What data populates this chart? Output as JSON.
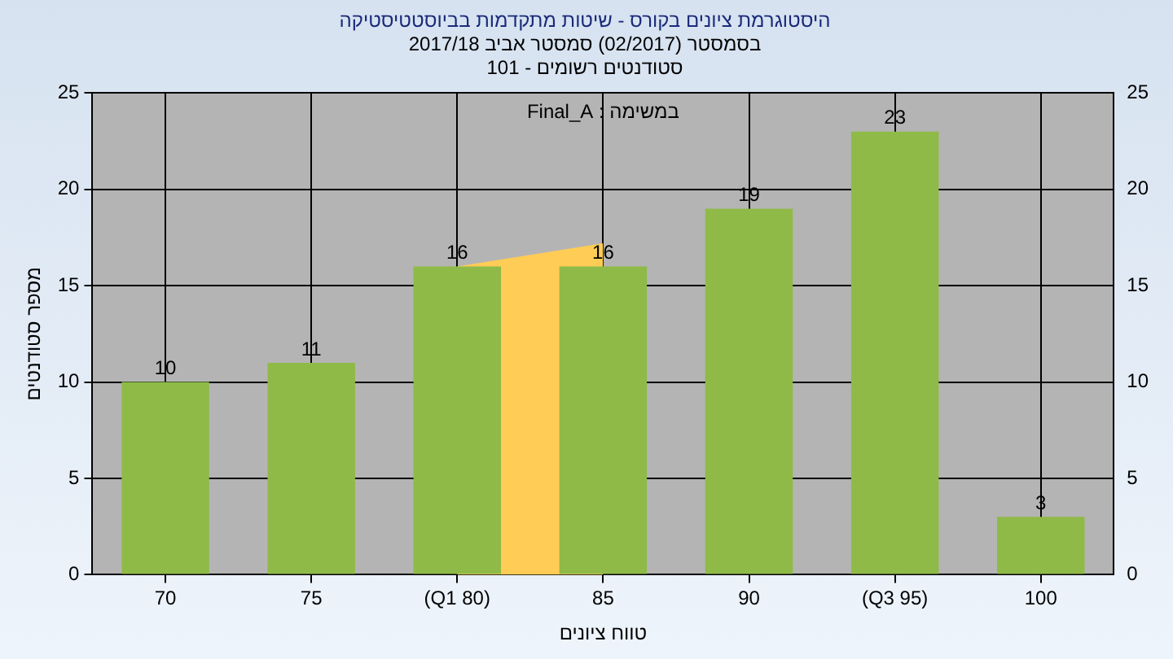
{
  "chart_data": {
    "type": "bar",
    "title": "היסטוגרמת ציונים בקורס - שיטות מתקדמות בביוסטטיסטיקה",
    "subtitle": "בסמסטר (02/2017) סמסטר אביב 2017/18\nסטודנטים רשומים - 101",
    "xlabel": "טווח ציונים",
    "ylabel": "מספר סטודנטים",
    "annotations": [
      "במשימה : Final_A"
    ],
    "categories": [
      "70",
      "75",
      "(Q1 80)",
      "85",
      "90",
      "(Q3 95)",
      "100"
    ],
    "series": [
      {
        "color": "#8fba48",
        "values": [
          10,
          11,
          16,
          16,
          19,
          23,
          3
        ],
        "value_labels": [
          "10",
          "11",
          "16",
          "16",
          "19",
          "23",
          "3"
        ]
      },
      {
        "type": "area",
        "color": "#ffcc55",
        "values": [
          null,
          null,
          16,
          17.2,
          null,
          null,
          null
        ]
      }
    ],
    "ylim": [
      0,
      25
    ],
    "yticks": [
      0,
      5,
      10,
      15,
      20,
      25
    ],
    "y2lim": [
      0,
      25
    ],
    "y2ticks": [
      0,
      5,
      10,
      15,
      20,
      25
    ],
    "grid": true,
    "legend": false
  }
}
